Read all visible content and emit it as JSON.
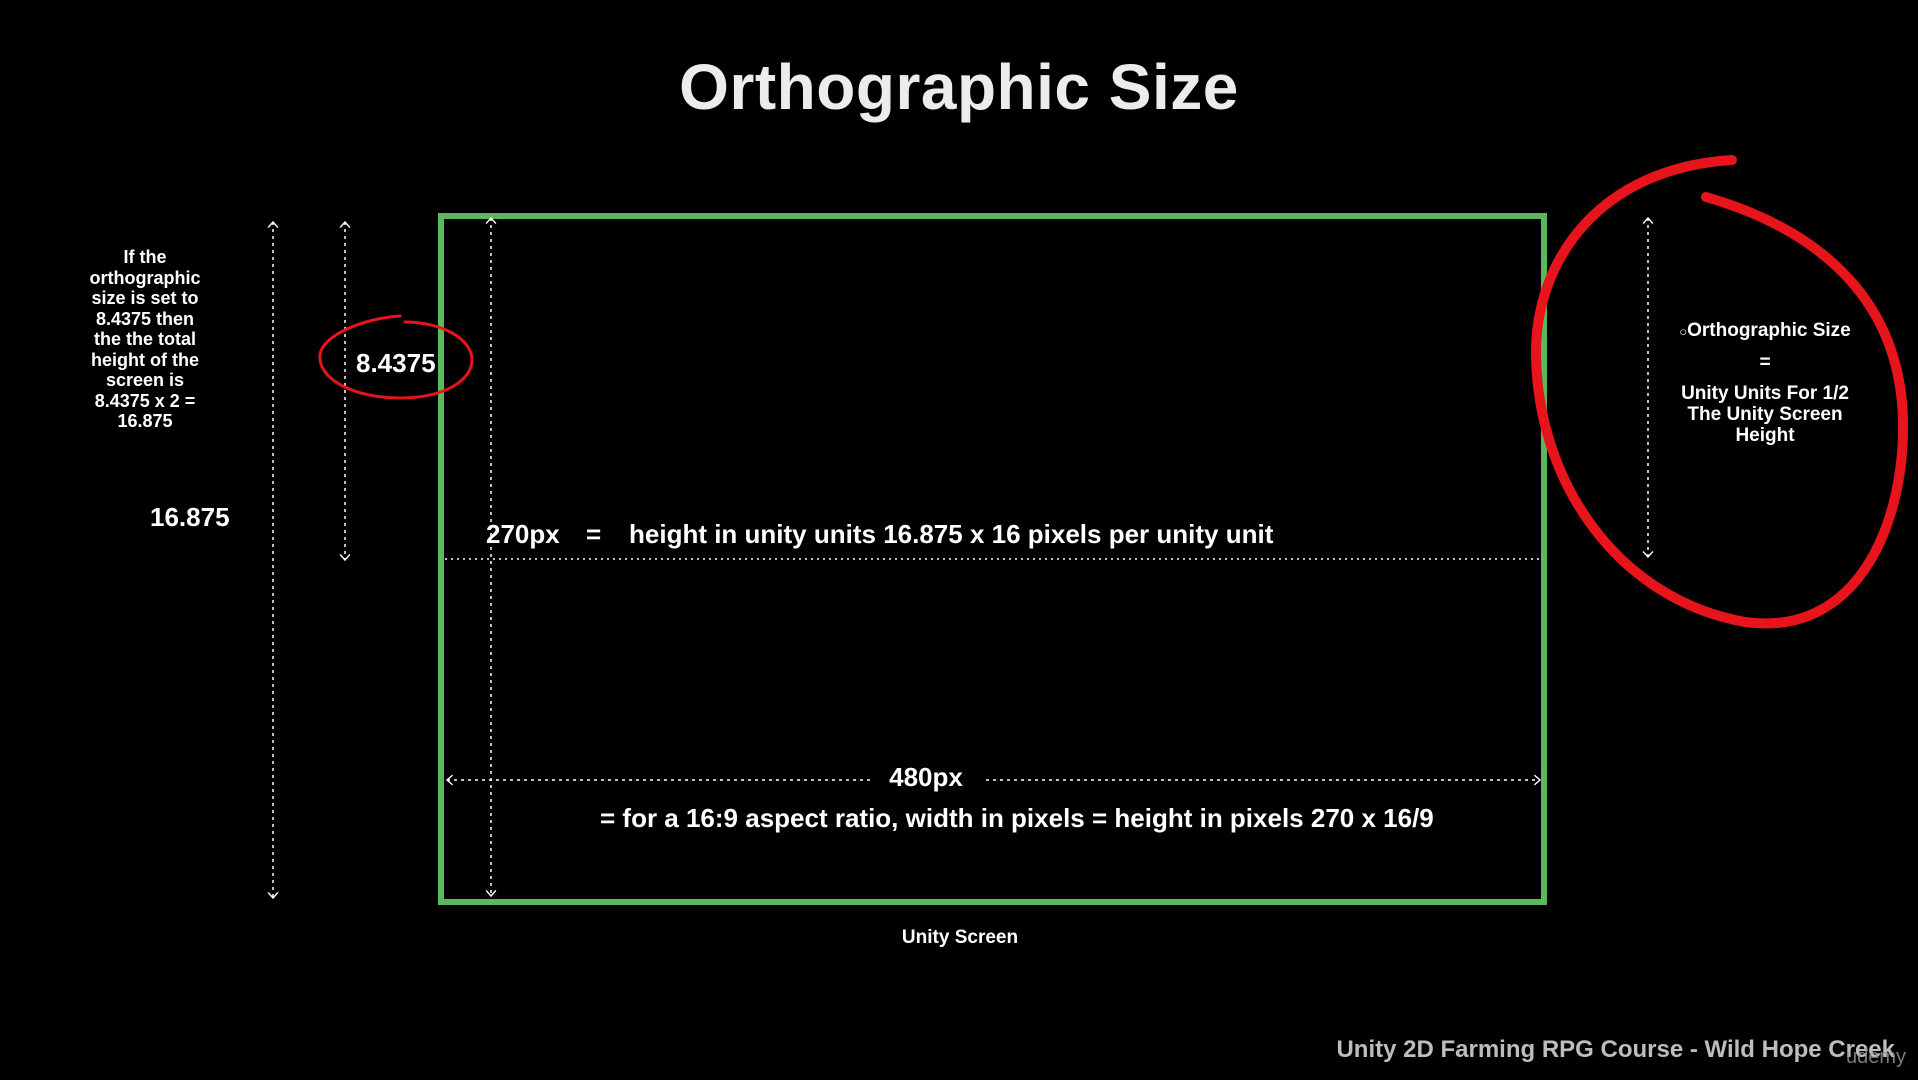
{
  "title": "Orthographic Size",
  "note": [
    "If the",
    "orthographic",
    "size is set to",
    "8.4375 then",
    "the the total",
    "height of the",
    "screen is",
    "8.4375 x 2 =",
    "16.875"
  ],
  "total_height_label": "16.875",
  "half_height_label": "8.4375",
  "height_row": {
    "px": "270px",
    "equals": "=",
    "text": "height in unity units 16.875 x 16 pixels per unity unit"
  },
  "width_row": {
    "px": "480px",
    "text": "=  for a 16:9 aspect ratio, width in pixels = height in pixels 270 x 16/9"
  },
  "screen_caption": "Unity Screen",
  "definition": {
    "bullet": "○",
    "term": "Orthographic Size",
    "equals": "=",
    "lines": [
      "Unity Units For 1/2",
      "The Unity Screen",
      "Height"
    ]
  },
  "footer": "Unity 2D Farming RPG Course - Wild Hope Creek",
  "watermark": "udemy",
  "colors": {
    "background": "#000000",
    "screen_border": "#5cb85c",
    "annotation": "#e8141b",
    "text": "#ffffff"
  }
}
